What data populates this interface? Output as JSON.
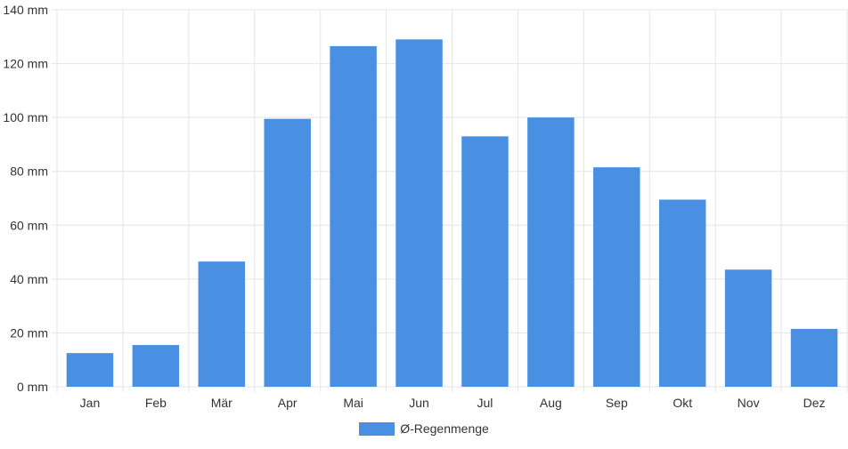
{
  "chart_data": {
    "type": "bar",
    "categories": [
      "Jan",
      "Feb",
      "Mär",
      "Apr",
      "Mai",
      "Jun",
      "Jul",
      "Aug",
      "Sep",
      "Okt",
      "Nov",
      "Dez"
    ],
    "series": [
      {
        "name": "Ø-Regenmenge",
        "values": [
          12.5,
          15.5,
          46.5,
          99.5,
          126.5,
          129,
          93,
          100,
          81.5,
          69.5,
          43.5,
          21.5
        ],
        "color": "#4a90e2"
      }
    ],
    "ylim": [
      0,
      140
    ],
    "yticks": [
      0,
      20,
      40,
      60,
      80,
      100,
      120,
      140
    ],
    "ytick_suffix": " mm",
    "title": "",
    "xlabel": "",
    "ylabel": "",
    "grid": true,
    "legend_position": "bottom-center"
  },
  "colors": {
    "bar": "#4a90e2",
    "grid": "#e5e5e5",
    "axis_text": "#333333"
  }
}
